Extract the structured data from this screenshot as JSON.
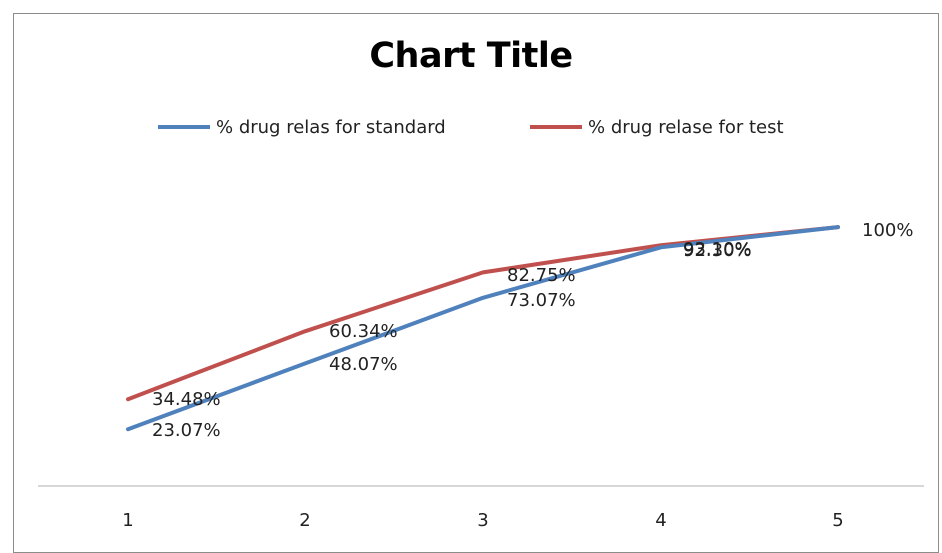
{
  "chart_data": {
    "type": "line",
    "title": "Chart Title",
    "categories": [
      "1",
      "2",
      "3",
      "4",
      "5"
    ],
    "legend_position": "top",
    "grid": false,
    "ylim": [
      0,
      120
    ],
    "series": [
      {
        "name": "% drug relas for standard",
        "color": "#4F81BD",
        "values": [
          23.07,
          48.07,
          73.07,
          92.3,
          100
        ],
        "labels": [
          "23.07%",
          "48.07%",
          "73.07%",
          "92.30%",
          "100%"
        ]
      },
      {
        "name": "% drug relase for test",
        "color": "#C0504D",
        "values": [
          34.48,
          60.34,
          82.75,
          93.1,
          100
        ],
        "labels": [
          "34.48%",
          "60.34%",
          "82.75%",
          "93.10%",
          ""
        ]
      }
    ]
  }
}
